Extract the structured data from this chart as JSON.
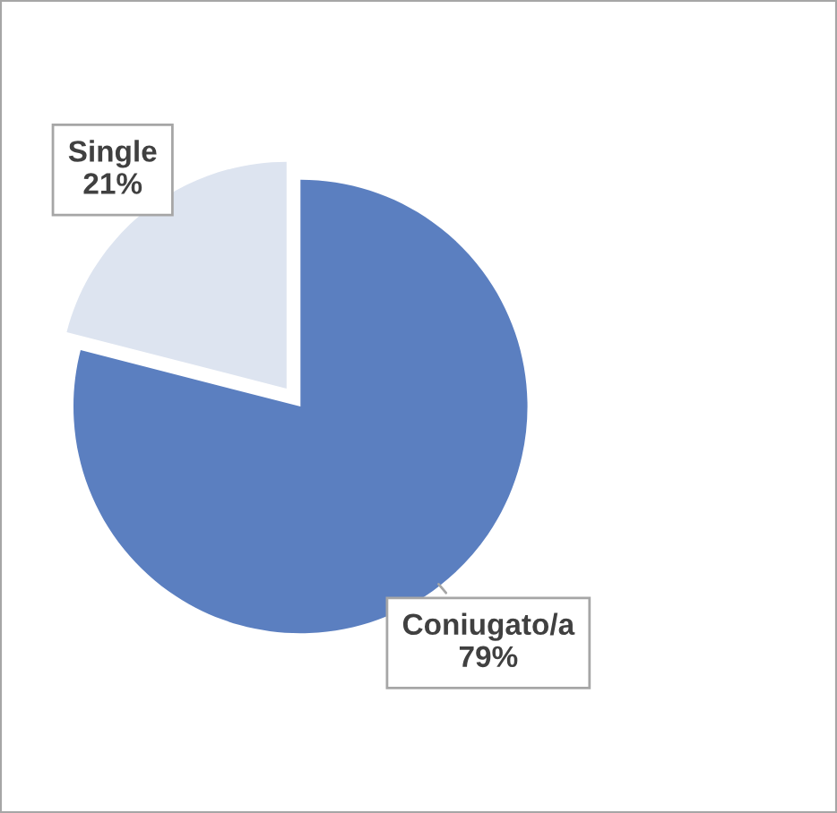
{
  "chart_data": {
    "type": "pie",
    "categories": [
      "Coniugato/a",
      "Single"
    ],
    "values": [
      79,
      21
    ],
    "colors": [
      "#5b7fc0",
      "#dde4f0"
    ],
    "value_labels": [
      "79%",
      "21%"
    ]
  }
}
